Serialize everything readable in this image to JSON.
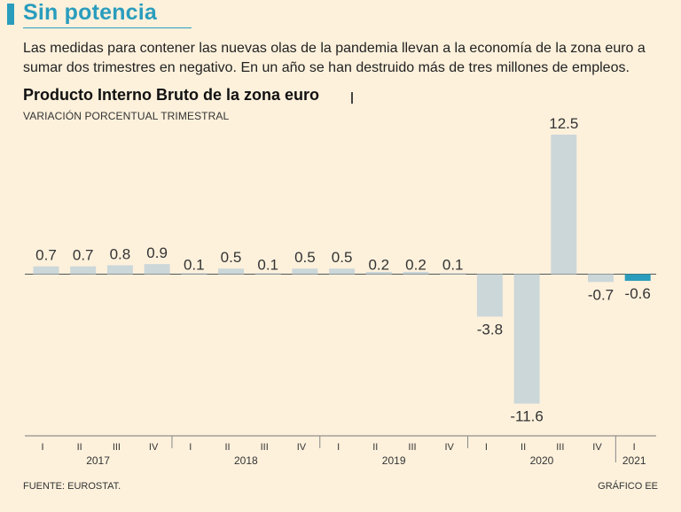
{
  "header": {
    "title": "Sin potencia",
    "intro": "Las medidas para contener las nuevas olas de la pandemia llevan a la economía de la zona euro a sumar dos trimestres en negativo. En un año se han destruido más de tres millones de empleos."
  },
  "footer": {
    "source": "FUENTE: EUROSTAT.",
    "credit": "GRÁFICO EE"
  },
  "colors": {
    "background": "#fdf1dc",
    "accent": "#2a9dbd",
    "bar": "#ccd7d9",
    "bar_highlight": "#2a9dbd"
  },
  "chart_data": {
    "type": "bar",
    "title": "Producto Interno Bruto de la zona euro",
    "subtitle": "VARIACIÓN PORCENTUAL TRIMESTRAL",
    "categories": [
      "I",
      "II",
      "III",
      "IV",
      "I",
      "II",
      "III",
      "IV",
      "I",
      "II",
      "III",
      "IV",
      "I",
      "II",
      "III",
      "IV",
      "I"
    ],
    "years": [
      {
        "label": "2017",
        "count": 4
      },
      {
        "label": "2018",
        "count": 4
      },
      {
        "label": "2019",
        "count": 4
      },
      {
        "label": "2020",
        "count": 4
      },
      {
        "label": "2021",
        "count": 1
      }
    ],
    "values": [
      0.7,
      0.7,
      0.8,
      0.9,
      0.1,
      0.5,
      0.1,
      0.5,
      0.5,
      0.2,
      0.2,
      0.1,
      -3.8,
      -11.6,
      12.5,
      -0.7,
      -0.6
    ],
    "value_labels": [
      "0.7",
      "0.7",
      "0.8",
      "0.9",
      "0.1",
      "0.5",
      "0.1",
      "0.5",
      "0.5",
      "0.2",
      "0.2",
      "0.1",
      "-3.8",
      "-11.6",
      "12.5",
      "-0.7",
      "-0.6"
    ],
    "highlight_index": 16,
    "ylim": [
      -11.6,
      12.5
    ]
  }
}
